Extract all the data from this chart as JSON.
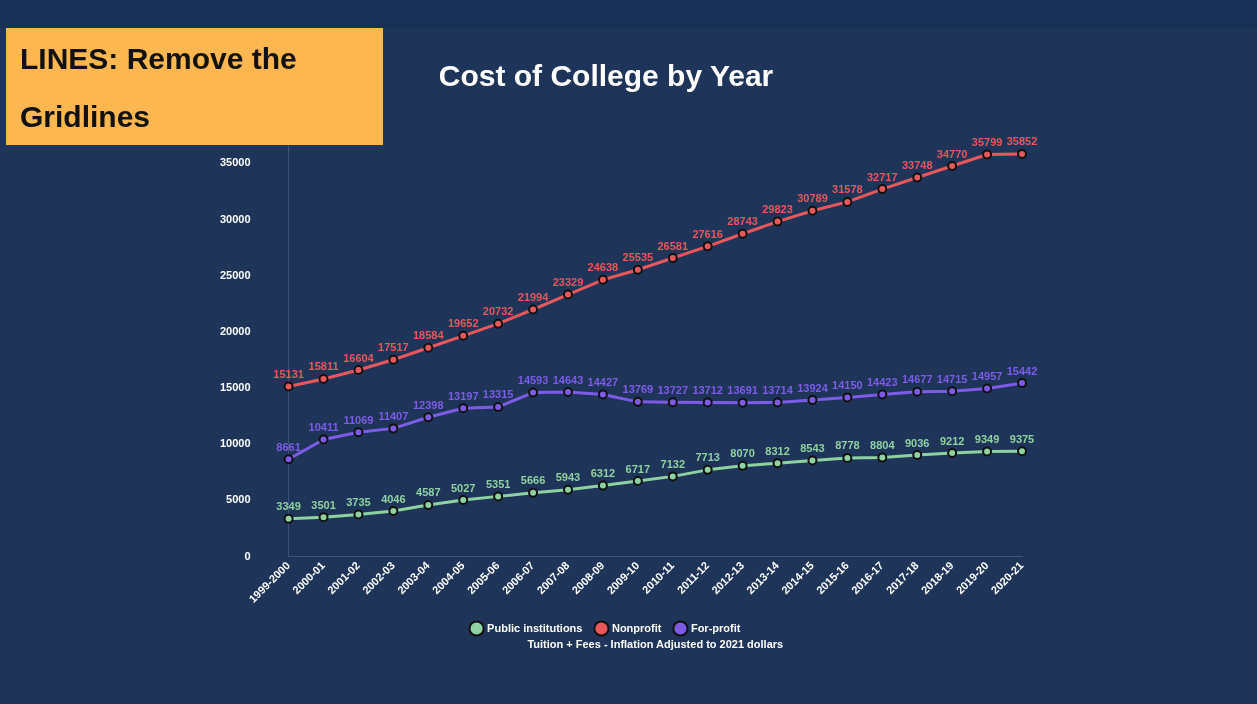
{
  "chart_data": {
    "type": "line",
    "title": "Cost of College by Year",
    "categories": [
      "1999-2000",
      "2000-01",
      "2001-02",
      "2002-03",
      "2003-04",
      "2004-05",
      "2005-06",
      "2006-07",
      "2007-08",
      "2008-09",
      "2009-10",
      "2010-11",
      "2011-12",
      "2012-13",
      "2013-14",
      "2014-15",
      "2015-16",
      "2016-17",
      "2017-18",
      "2018-19",
      "2019-20",
      "2020-21"
    ],
    "series": [
      {
        "name": "Public institutions",
        "color": "#8fd1a0",
        "values": [
          3349,
          3501,
          3735,
          4046,
          4587,
          5027,
          5351,
          5666,
          5943,
          6312,
          6717,
          7132,
          7713,
          8070,
          8312,
          8543,
          8778,
          8804,
          9036,
          9212,
          9349,
          9375
        ]
      },
      {
        "name": "Nonprofit",
        "color": "#e8575a",
        "values": [
          15131,
          15811,
          16604,
          17517,
          18584,
          19652,
          20732,
          21994,
          23329,
          24638,
          25535,
          26581,
          27616,
          28743,
          29823,
          30789,
          31578,
          32717,
          33748,
          34770,
          35799,
          35852
        ]
      },
      {
        "name": "For-profit",
        "color": "#7c5ce6",
        "values": [
          8661,
          10411,
          11069,
          11407,
          12398,
          13197,
          13315,
          14593,
          14643,
          14427,
          13769,
          13727,
          13712,
          13691,
          13714,
          13924,
          14150,
          14423,
          14677,
          14715,
          14957,
          15442
        ]
      }
    ],
    "ylim": [
      0,
      37000
    ],
    "yticks": [
      0,
      5000,
      10000,
      15000,
      20000,
      25000,
      30000,
      35000
    ],
    "grid": false,
    "legend": "bottom",
    "marker": "circle",
    "line_style": "solid",
    "data_labels": true,
    "annotations": [
      "LINES: Remove the Gridlines",
      "Tuition + Fees - Inflation Adjusted to 2021 dollars"
    ]
  }
}
